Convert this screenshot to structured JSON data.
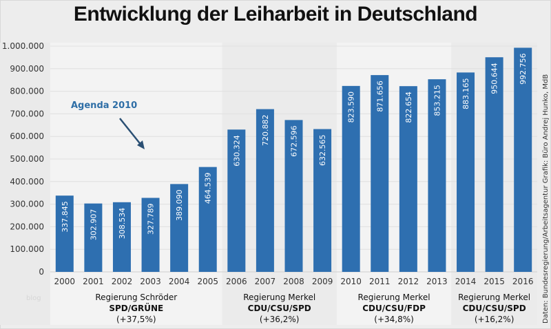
{
  "chart_data": {
    "type": "bar",
    "title": "Entwicklung der Leiharbeit in Deutschland",
    "xlabel": "",
    "ylabel": "",
    "ylim": [
      0,
      1000000
    ],
    "yticks": [
      0,
      100000,
      200000,
      300000,
      400000,
      500000,
      600000,
      700000,
      800000,
      900000,
      1000000
    ],
    "ytick_labels": [
      "0",
      "100.000",
      "200.000",
      "300.000",
      "400.000",
      "500.000",
      "600.000",
      "700.000",
      "800.000",
      "900.000",
      "1.000.000"
    ],
    "grid": true,
    "categories": [
      "2000",
      "2001",
      "2002",
      "2003",
      "2004",
      "2005",
      "2006",
      "2007",
      "2008",
      "2009",
      "2010",
      "2011",
      "2012",
      "2013",
      "2014",
      "2015",
      "2016"
    ],
    "values": [
      337845,
      302907,
      308534,
      327789,
      389090,
      464539,
      630324,
      720882,
      672596,
      632565,
      823590,
      871656,
      822654,
      853215,
      883165,
      950644,
      992756
    ],
    "value_labels": [
      "337.845",
      "302.907",
      "308.534",
      "327.789",
      "389.090",
      "464.539",
      "630.324",
      "720.882",
      "672.596",
      "632.565",
      "823.590",
      "871.656",
      "822.654",
      "853.215",
      "883.165",
      "950.644",
      "992.756"
    ],
    "bar_color": "#2e6fb0",
    "groups": [
      {
        "name": "Regierung Schröder",
        "party": "SPD/GRÜNE",
        "change": "(+37,5%)",
        "start": 0,
        "end": 5,
        "shade": "#f3f3f3"
      },
      {
        "name": "Regierung Merkel",
        "party": "CDU/CSU/SPD",
        "change": "(+36,2%)",
        "start": 6,
        "end": 9,
        "shade": "#ebebeb"
      },
      {
        "name": "Regierung Merkel",
        "party": "CDU/CSU/FDP",
        "change": "(+34,8%)",
        "start": 10,
        "end": 13,
        "shade": "#f3f3f3"
      },
      {
        "name": "Regierung Merkel",
        "party": "CDU/CSU/SPD",
        "change": "(+16,2%)",
        "start": 14,
        "end": 16,
        "shade": "#ebebeb"
      }
    ],
    "annotations": [
      {
        "text": "Agenda 2010",
        "color": "#2e6ea6"
      }
    ],
    "source": "Daten: Bundesregierung/Arbeitsagentur  Grafik: Büro Andrej Hunko, MdB",
    "watermark": "blog"
  }
}
